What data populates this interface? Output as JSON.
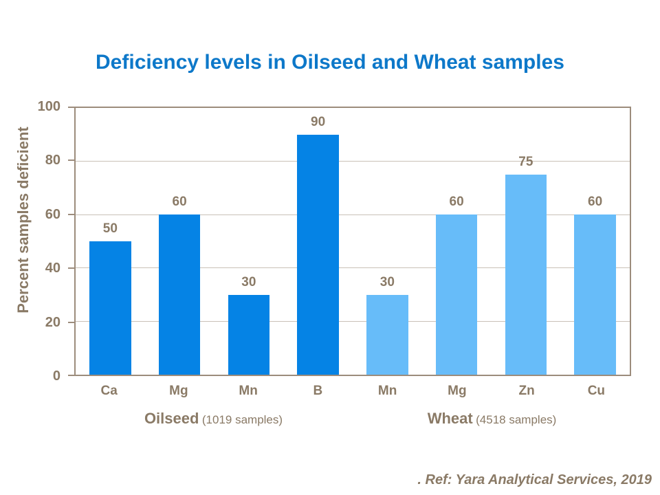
{
  "footer": ". Ref: Yara Analytical Services, 2019",
  "chart_data": {
    "type": "bar",
    "title": "Deficiency levels in Oilseed and Wheat samples",
    "xlabel": "",
    "ylabel": "Percent samples deficient",
    "ylim": [
      0,
      100
    ],
    "yticks": [
      0,
      20,
      40,
      60,
      80,
      100
    ],
    "grid": true,
    "legend_position": "none",
    "categories": [
      "Ca",
      "Mg",
      "Mn",
      "B",
      "Mn",
      "Mg",
      "Zn",
      "Cu"
    ],
    "values": [
      50,
      60,
      30,
      90,
      30,
      60,
      75,
      60
    ],
    "bar_group": [
      0,
      0,
      0,
      0,
      1,
      1,
      1,
      1
    ],
    "groups": [
      {
        "name": "Oilseed",
        "samples": "(1019 samples)",
        "color": "#0583e5"
      },
      {
        "name": "Wheat",
        "samples": "(4518 samples)",
        "color": "#67bcf9"
      }
    ],
    "colors": {
      "title": "#0d78c9",
      "axis_text": "#8a7a66",
      "plot_border": "#9c8c7c",
      "gridline": "#c9c1b7",
      "background": "#ffffff"
    }
  }
}
